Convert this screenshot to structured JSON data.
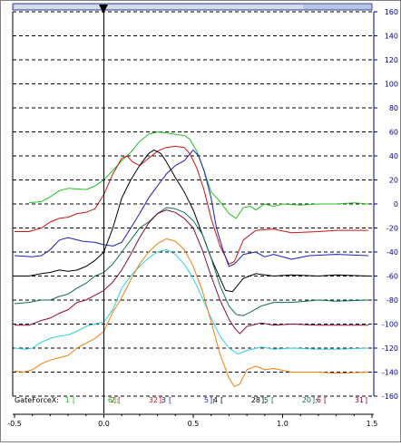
{
  "colors": {
    "frame": "#808080",
    "grid": "#000000",
    "right_axis": "#00008b",
    "bottom_axis": "#000000",
    "scrollbar_fill": "#b8c4e6",
    "scrollbar_border": "#3a4a8a"
  },
  "legend": {
    "title": "GateForceX:",
    "entries": [
      {
        "index": "1",
        "value": "6",
        "color": "#22c322"
      },
      {
        "index": "2",
        "value": "32",
        "color": "#c81414"
      },
      {
        "index": "3",
        "value": "5",
        "color": "#1e1eb4"
      },
      {
        "index": "4",
        "value": "28",
        "color": "#000000"
      },
      {
        "index": "5",
        "value": "20",
        "color": "#11724a"
      },
      {
        "index": "6",
        "value": "31",
        "color": "#8b0a3e"
      }
    ]
  },
  "chart_data": {
    "type": "line",
    "xlim": [
      -0.5,
      1.5
    ],
    "ylim": [
      -160,
      160
    ],
    "x_ticks": [
      "-0.5",
      "0.0",
      "0.5",
      "1.0",
      "1.5"
    ],
    "y_ticks": [
      "160",
      "140",
      "120",
      "100",
      "80",
      "60",
      "40",
      "20",
      "0",
      "-20",
      "-40",
      "-60",
      "-80",
      "-100",
      "-120",
      "-140",
      "-160"
    ],
    "grid_y": true,
    "cursor_x": 0.0,
    "series": [
      {
        "name": "1",
        "color": "#22c322",
        "points": [
          [
            -0.42,
            1
          ],
          [
            -0.35,
            2
          ],
          [
            -0.3,
            6
          ],
          [
            -0.25,
            11
          ],
          [
            -0.2,
            13
          ],
          [
            -0.1,
            12
          ],
          [
            -0.05,
            15
          ],
          [
            0.0,
            20
          ],
          [
            0.05,
            28
          ],
          [
            0.1,
            36
          ],
          [
            0.15,
            43
          ],
          [
            0.2,
            52
          ],
          [
            0.25,
            58
          ],
          [
            0.3,
            60
          ],
          [
            0.35,
            59
          ],
          [
            0.4,
            58
          ],
          [
            0.45,
            57
          ],
          [
            0.48,
            54
          ],
          [
            0.52,
            44
          ],
          [
            0.56,
            28
          ],
          [
            0.6,
            10
          ],
          [
            0.65,
            2
          ],
          [
            0.7,
            -8
          ],
          [
            0.74,
            -12
          ],
          [
            0.78,
            -3
          ],
          [
            0.82,
            -2
          ],
          [
            0.85,
            -5
          ],
          [
            0.9,
            0
          ],
          [
            0.95,
            -2
          ],
          [
            1.0,
            0
          ],
          [
            1.1,
            -1
          ],
          [
            1.2,
            0
          ],
          [
            1.3,
            0
          ],
          [
            1.4,
            1
          ],
          [
            1.48,
            0
          ]
        ]
      },
      {
        "name": "2",
        "color": "#c81414",
        "points": [
          [
            -0.5,
            -23
          ],
          [
            -0.42,
            -23
          ],
          [
            -0.35,
            -20
          ],
          [
            -0.3,
            -15
          ],
          [
            -0.25,
            -12
          ],
          [
            -0.2,
            -11
          ],
          [
            -0.15,
            -8
          ],
          [
            -0.1,
            -7
          ],
          [
            -0.05,
            -4
          ],
          [
            0.0,
            8
          ],
          [
            0.05,
            25
          ],
          [
            0.1,
            38
          ],
          [
            0.13,
            40
          ],
          [
            0.16,
            35
          ],
          [
            0.2,
            32
          ],
          [
            0.25,
            38
          ],
          [
            0.3,
            44
          ],
          [
            0.35,
            47
          ],
          [
            0.4,
            48
          ],
          [
            0.45,
            47
          ],
          [
            0.48,
            42
          ],
          [
            0.52,
            30
          ],
          [
            0.56,
            12
          ],
          [
            0.6,
            -12
          ],
          [
            0.65,
            -35
          ],
          [
            0.68,
            -44
          ],
          [
            0.7,
            -50
          ],
          [
            0.73,
            -48
          ],
          [
            0.78,
            -30
          ],
          [
            0.85,
            -22
          ],
          [
            0.95,
            -21
          ],
          [
            1.05,
            -24
          ],
          [
            1.2,
            -23
          ],
          [
            1.3,
            -22
          ],
          [
            1.48,
            -22
          ]
        ]
      },
      {
        "name": "3",
        "color": "#1e1eb4",
        "points": [
          [
            -0.5,
            -43
          ],
          [
            -0.4,
            -44
          ],
          [
            -0.35,
            -43
          ],
          [
            -0.3,
            -38
          ],
          [
            -0.25,
            -30
          ],
          [
            -0.2,
            -28
          ],
          [
            -0.12,
            -31
          ],
          [
            -0.05,
            -32
          ],
          [
            0.0,
            -34
          ],
          [
            0.05,
            -35
          ],
          [
            0.1,
            -32
          ],
          [
            0.15,
            -20
          ],
          [
            0.2,
            -8
          ],
          [
            0.25,
            5
          ],
          [
            0.3,
            15
          ],
          [
            0.35,
            25
          ],
          [
            0.4,
            32
          ],
          [
            0.45,
            36
          ],
          [
            0.5,
            45
          ],
          [
            0.53,
            40
          ],
          [
            0.56,
            28
          ],
          [
            0.6,
            5
          ],
          [
            0.63,
            -20
          ],
          [
            0.67,
            -40
          ],
          [
            0.7,
            -52
          ],
          [
            0.73,
            -50
          ],
          [
            0.78,
            -42
          ],
          [
            0.85,
            -40
          ],
          [
            0.9,
            -44
          ],
          [
            0.95,
            -42
          ],
          [
            1.05,
            -46
          ],
          [
            1.15,
            -43
          ],
          [
            1.3,
            -42
          ],
          [
            1.48,
            -43
          ]
        ]
      },
      {
        "name": "4",
        "color": "#000000",
        "points": [
          [
            -0.5,
            -60
          ],
          [
            -0.42,
            -60
          ],
          [
            -0.35,
            -58
          ],
          [
            -0.3,
            -57
          ],
          [
            -0.25,
            -55
          ],
          [
            -0.2,
            -56
          ],
          [
            -0.15,
            -55
          ],
          [
            -0.1,
            -52
          ],
          [
            -0.05,
            -47
          ],
          [
            0.0,
            -40
          ],
          [
            0.05,
            -20
          ],
          [
            0.1,
            5
          ],
          [
            0.15,
            20
          ],
          [
            0.2,
            32
          ],
          [
            0.25,
            42
          ],
          [
            0.28,
            45
          ],
          [
            0.32,
            42
          ],
          [
            0.35,
            35
          ],
          [
            0.4,
            22
          ],
          [
            0.45,
            10
          ],
          [
            0.5,
            -5
          ],
          [
            0.55,
            -25
          ],
          [
            0.6,
            -45
          ],
          [
            0.65,
            -62
          ],
          [
            0.68,
            -72
          ],
          [
            0.72,
            -73
          ],
          [
            0.78,
            -62
          ],
          [
            0.85,
            -58
          ],
          [
            0.95,
            -60
          ],
          [
            1.05,
            -59
          ],
          [
            1.2,
            -60
          ],
          [
            1.3,
            -59
          ],
          [
            1.48,
            -60
          ]
        ]
      },
      {
        "name": "5",
        "color": "#11724a",
        "points": [
          [
            -0.5,
            -83
          ],
          [
            -0.42,
            -82
          ],
          [
            -0.35,
            -80
          ],
          [
            -0.3,
            -80
          ],
          [
            -0.25,
            -77
          ],
          [
            -0.2,
            -75
          ],
          [
            -0.15,
            -70
          ],
          [
            -0.1,
            -66
          ],
          [
            -0.05,
            -60
          ],
          [
            0.0,
            -57
          ],
          [
            0.05,
            -50
          ],
          [
            0.1,
            -40
          ],
          [
            0.15,
            -30
          ],
          [
            0.2,
            -20
          ],
          [
            0.25,
            -15
          ],
          [
            0.3,
            -8
          ],
          [
            0.35,
            -3
          ],
          [
            0.4,
            -4
          ],
          [
            0.45,
            -7
          ],
          [
            0.5,
            -14
          ],
          [
            0.55,
            -25
          ],
          [
            0.6,
            -45
          ],
          [
            0.65,
            -68
          ],
          [
            0.7,
            -85
          ],
          [
            0.74,
            -92
          ],
          [
            0.78,
            -93
          ],
          [
            0.82,
            -90
          ],
          [
            0.88,
            -85
          ],
          [
            0.95,
            -82
          ],
          [
            1.05,
            -82
          ],
          [
            1.2,
            -80
          ],
          [
            1.3,
            -81
          ],
          [
            1.48,
            -80
          ]
        ]
      },
      {
        "name": "6",
        "color": "#8b0a3e",
        "points": [
          [
            -0.5,
            -101
          ],
          [
            -0.42,
            -101
          ],
          [
            -0.35,
            -97
          ],
          [
            -0.3,
            -95
          ],
          [
            -0.25,
            -91
          ],
          [
            -0.2,
            -88
          ],
          [
            -0.15,
            -82
          ],
          [
            -0.1,
            -80
          ],
          [
            -0.05,
            -76
          ],
          [
            0.0,
            -72
          ],
          [
            0.05,
            -65
          ],
          [
            0.1,
            -55
          ],
          [
            0.15,
            -42
          ],
          [
            0.2,
            -28
          ],
          [
            0.25,
            -16
          ],
          [
            0.3,
            -8
          ],
          [
            0.35,
            -5
          ],
          [
            0.4,
            -7
          ],
          [
            0.45,
            -12
          ],
          [
            0.5,
            -20
          ],
          [
            0.55,
            -38
          ],
          [
            0.6,
            -60
          ],
          [
            0.65,
            -80
          ],
          [
            0.7,
            -96
          ],
          [
            0.73,
            -103
          ],
          [
            0.76,
            -108
          ],
          [
            0.8,
            -102
          ],
          [
            0.88,
            -99
          ],
          [
            0.95,
            -101
          ],
          [
            1.05,
            -100
          ],
          [
            1.2,
            -101
          ],
          [
            1.3,
            -101
          ],
          [
            1.48,
            -101
          ]
        ]
      },
      {
        "name": "7",
        "color": "#30d0e0",
        "points": [
          [
            -0.5,
            -120
          ],
          [
            -0.44,
            -121
          ],
          [
            -0.4,
            -120
          ],
          [
            -0.35,
            -115
          ],
          [
            -0.3,
            -112
          ],
          [
            -0.25,
            -110
          ],
          [
            -0.2,
            -109
          ],
          [
            -0.15,
            -106
          ],
          [
            -0.1,
            -102
          ],
          [
            -0.05,
            -100
          ],
          [
            0.0,
            -98
          ],
          [
            0.05,
            -88
          ],
          [
            0.1,
            -70
          ],
          [
            0.15,
            -60
          ],
          [
            0.2,
            -52
          ],
          [
            0.25,
            -45
          ],
          [
            0.3,
            -40
          ],
          [
            0.35,
            -38
          ],
          [
            0.4,
            -42
          ],
          [
            0.45,
            -50
          ],
          [
            0.5,
            -62
          ],
          [
            0.55,
            -78
          ],
          [
            0.6,
            -95
          ],
          [
            0.65,
            -110
          ],
          [
            0.7,
            -120
          ],
          [
            0.75,
            -125
          ],
          [
            0.8,
            -122
          ],
          [
            0.88,
            -119
          ],
          [
            0.95,
            -121
          ],
          [
            1.05,
            -120
          ],
          [
            1.2,
            -121
          ],
          [
            1.3,
            -121
          ],
          [
            1.48,
            -120
          ]
        ]
      },
      {
        "name": "8",
        "color": "#f08010",
        "points": [
          [
            -0.5,
            -139
          ],
          [
            -0.45,
            -140
          ],
          [
            -0.4,
            -138
          ],
          [
            -0.35,
            -133
          ],
          [
            -0.3,
            -130
          ],
          [
            -0.25,
            -128
          ],
          [
            -0.2,
            -126
          ],
          [
            -0.15,
            -120
          ],
          [
            -0.1,
            -116
          ],
          [
            -0.05,
            -112
          ],
          [
            0.0,
            -106
          ],
          [
            0.05,
            -90
          ],
          [
            0.1,
            -78
          ],
          [
            0.15,
            -63
          ],
          [
            0.2,
            -50
          ],
          [
            0.25,
            -40
          ],
          [
            0.3,
            -33
          ],
          [
            0.35,
            -29
          ],
          [
            0.4,
            -31
          ],
          [
            0.45,
            -38
          ],
          [
            0.5,
            -52
          ],
          [
            0.55,
            -72
          ],
          [
            0.6,
            -98
          ],
          [
            0.65,
            -125
          ],
          [
            0.7,
            -145
          ],
          [
            0.73,
            -152
          ],
          [
            0.76,
            -150
          ],
          [
            0.8,
            -138
          ],
          [
            0.85,
            -135
          ],
          [
            0.9,
            -138
          ],
          [
            0.95,
            -137
          ],
          [
            1.05,
            -140
          ],
          [
            1.2,
            -140
          ],
          [
            1.3,
            -141
          ],
          [
            1.48,
            -140
          ]
        ]
      }
    ]
  }
}
